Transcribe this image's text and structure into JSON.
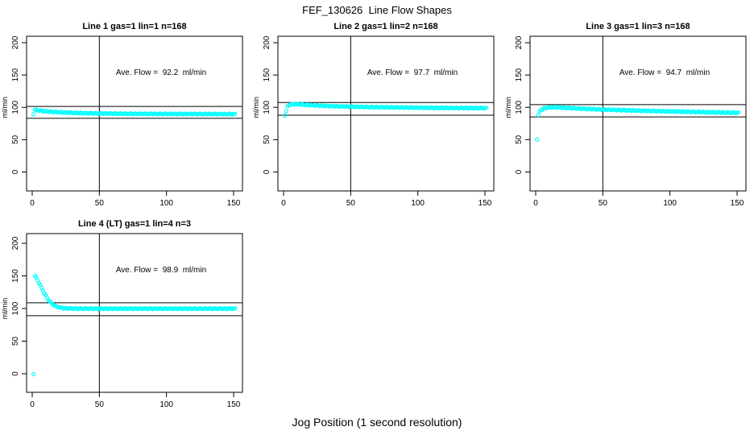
{
  "figure": {
    "title": "FEF_130626  Line Flow Shapes",
    "xlabel": "Jog Position (1 second resolution)",
    "background_color": "#ffffff",
    "text_color": "#000000"
  },
  "chart_data": {
    "type": "scatter",
    "layout": "2-row by 3-column grid, 4 panels used",
    "point_color": "#00ffff",
    "line_color": "#000000",
    "marker": "open-circle",
    "xlim": [
      0,
      155
    ],
    "ylim": [
      0,
      200
    ],
    "x_ticks": [
      0,
      50,
      100,
      150
    ],
    "y_ticks": [
      0,
      50,
      100,
      150,
      200
    ],
    "ylabel": "ml/min",
    "vline_note": "vertical reference line at x=50 in every panel",
    "hline_note": "horizontal reference lines at ave flow +/- 10%",
    "panels": [
      {
        "title": "Line 1 gas=1 lin=1 n=168",
        "annotation": "Ave. Flow =  92.2  ml/min",
        "ave_flow": 92.2,
        "row": 0,
        "col": 0,
        "vline_x": 50,
        "hlines": [
          101.4,
          83.0
        ],
        "points": [
          [
            1,
            90
          ],
          [
            2,
            96
          ],
          [
            3,
            95.8
          ],
          [
            5,
            95.2
          ],
          [
            8,
            94.4
          ],
          [
            12,
            93.5
          ],
          [
            18,
            92.6
          ],
          [
            25,
            92
          ],
          [
            35,
            91.2
          ],
          [
            50,
            90.6
          ],
          [
            70,
            90.1
          ],
          [
            90,
            89.9
          ],
          [
            110,
            89.8
          ],
          [
            130,
            89.7
          ],
          [
            151,
            89.6
          ]
        ]
      },
      {
        "title": "Line 2 gas=1 lin=2 n=168",
        "annotation": "Ave. Flow =  97.7  ml/min",
        "ave_flow": 97.7,
        "row": 0,
        "col": 1,
        "vline_x": 50,
        "hlines": [
          107.5,
          87.9
        ],
        "points": [
          [
            1,
            88
          ],
          [
            2,
            94
          ],
          [
            3,
            101
          ],
          [
            4,
            103.5
          ],
          [
            6,
            104.8
          ],
          [
            9,
            105
          ],
          [
            14,
            104.3
          ],
          [
            20,
            103.4
          ],
          [
            30,
            102.3
          ],
          [
            45,
            101.3
          ],
          [
            60,
            100.6
          ],
          [
            80,
            100
          ],
          [
            100,
            99.5
          ],
          [
            125,
            99.1
          ],
          [
            151,
            98.8
          ]
        ]
      },
      {
        "title": "Line 3 gas=1 lin=3 n=168",
        "annotation": "Ave. Flow =  94.7  ml/min",
        "ave_flow": 94.7,
        "row": 0,
        "col": 2,
        "vline_x": 50,
        "hlines": [
          104.2,
          85.2
        ],
        "points": [
          [
            1,
            51
          ],
          [
            2,
            88
          ],
          [
            3,
            93.5
          ],
          [
            4,
            96
          ],
          [
            6,
            98.3
          ],
          [
            9,
            99.7
          ],
          [
            13,
            100.2
          ],
          [
            18,
            99.8
          ],
          [
            25,
            99
          ],
          [
            35,
            97.9
          ],
          [
            50,
            96.6
          ],
          [
            70,
            95.3
          ],
          [
            90,
            94.2
          ],
          [
            110,
            93.3
          ],
          [
            130,
            92.4
          ],
          [
            151,
            91.6
          ]
        ]
      },
      {
        "title": "Line 4 (LT) gas=1 lin=4 n=3",
        "annotation": "Ave. Flow =  98.9  ml/min",
        "ave_flow": 98.9,
        "row": 1,
        "col": 0,
        "vline_x": 50,
        "hlines": [
          108.8,
          89.0
        ],
        "points": [
          [
            1,
            0
          ],
          [
            2,
            150
          ],
          [
            3,
            147
          ],
          [
            4,
            143.5
          ],
          [
            5,
            139.5
          ],
          [
            6,
            135.5
          ],
          [
            7,
            131.5
          ],
          [
            8,
            127.5
          ],
          [
            9,
            123.5
          ],
          [
            10,
            120
          ],
          [
            11,
            116.5
          ],
          [
            12,
            113.5
          ],
          [
            13,
            111
          ],
          [
            14,
            108.8
          ],
          [
            15,
            107
          ],
          [
            16,
            105.5
          ],
          [
            17,
            104.2
          ],
          [
            18,
            103.2
          ],
          [
            19,
            102.4
          ],
          [
            20,
            101.8
          ],
          [
            22,
            101
          ],
          [
            24,
            100.5
          ],
          [
            27,
            100.2
          ],
          [
            30,
            100
          ],
          [
            35,
            99.9
          ],
          [
            45,
            99.8
          ],
          [
            60,
            99.8
          ],
          [
            80,
            99.9
          ],
          [
            100,
            99.8
          ],
          [
            120,
            99.8
          ],
          [
            135,
            99.9
          ],
          [
            151,
            99.8
          ]
        ]
      }
    ]
  }
}
